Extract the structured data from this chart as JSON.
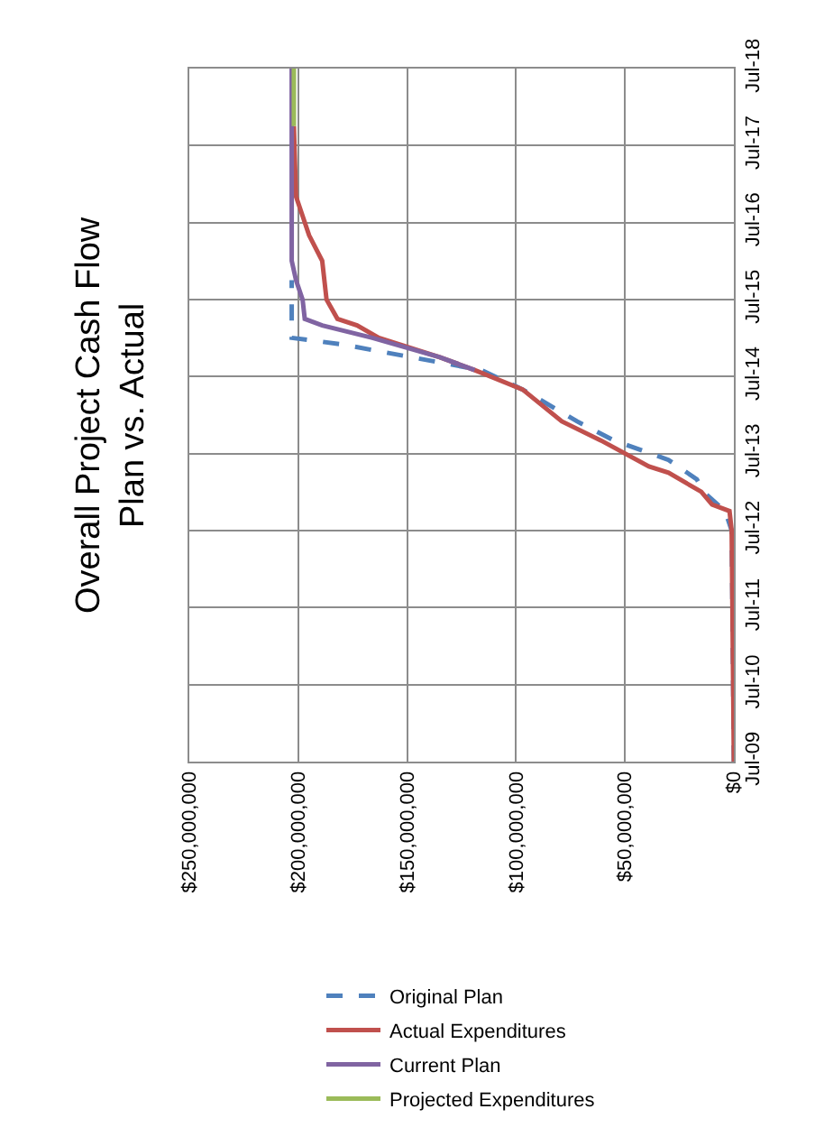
{
  "chart_data": {
    "type": "line",
    "orientation": "horizontal",
    "title": "Overall Project Cash Flow\nPlan vs. Actual",
    "xlim": [
      250000000,
      0
    ],
    "xticks": [
      {
        "value": 0,
        "label": "$0"
      },
      {
        "value": 50000000,
        "label": "$50,000,000"
      },
      {
        "value": 100000000,
        "label": "$100,000,000"
      },
      {
        "value": 150000000,
        "label": "$150,000,000"
      },
      {
        "value": 200000000,
        "label": "$200,000,000"
      },
      {
        "value": 250000000,
        "label": "$250,000,000"
      }
    ],
    "ylim": [
      "2009-07",
      "2018-07"
    ],
    "yticks": [
      {
        "value": "2009-07",
        "label": "Jul-09"
      },
      {
        "value": "2010-07",
        "label": "Jul-10"
      },
      {
        "value": "2011-07",
        "label": "Jul-11"
      },
      {
        "value": "2012-07",
        "label": "Jul-12"
      },
      {
        "value": "2013-07",
        "label": "Jul-13"
      },
      {
        "value": "2014-07",
        "label": "Jul-14"
      },
      {
        "value": "2015-07",
        "label": "Jul-15"
      },
      {
        "value": "2016-07",
        "label": "Jul-16"
      },
      {
        "value": "2017-07",
        "label": "Jul-17"
      },
      {
        "value": "2018-07",
        "label": "Jul-18"
      }
    ],
    "grid": true,
    "legend": "bottom",
    "marker": "none",
    "series": [
      {
        "name": "Original Plan",
        "color": "#4f81bd",
        "line_style": "dashed",
        "x": [
          "2009-07",
          "2012-07",
          "2012-10",
          "2013-01",
          "2013-03",
          "2013-06",
          "2013-09",
          "2013-12",
          "2014-05",
          "2014-08",
          "2014-10",
          "2014-12",
          "2015-01",
          "2015-10"
        ],
        "values": [
          0,
          1000000,
          4000000,
          14000000,
          17000000,
          30000000,
          55000000,
          72000000,
          97000000,
          116000000,
          148000000,
          180000000,
          203000000,
          203000000
        ]
      },
      {
        "name": "Actual Expenditures",
        "color": "#c0504d",
        "line_style": "solid",
        "x": [
          "2009-07",
          "2012-07",
          "2012-10",
          "2012-11",
          "2013-01",
          "2013-04",
          "2013-05",
          "2013-09",
          "2013-12",
          "2014-05",
          "2014-08",
          "2014-10",
          "2015-01",
          "2015-03",
          "2015-04",
          "2015-07",
          "2016-01",
          "2016-05",
          "2016-08",
          "2016-11",
          "2017-10"
        ],
        "values": [
          0,
          1000000,
          2000000,
          10000000,
          15000000,
          30000000,
          39000000,
          61000000,
          79000000,
          97000000,
          119000000,
          135000000,
          163000000,
          173000000,
          182000000,
          187000000,
          189000000,
          195000000,
          198000000,
          201000000,
          202000000
        ]
      },
      {
        "name": "Current Plan",
        "color": "#8064a2",
        "line_style": "solid",
        "x": [
          "2014-08",
          "2014-10",
          "2015-01",
          "2015-03",
          "2015-04",
          "2015-07",
          "2015-10",
          "2016-01",
          "2018-07"
        ],
        "values": [
          119000000,
          135000000,
          166000000,
          189000000,
          197000000,
          198000000,
          201000000,
          203000000,
          203000000
        ]
      },
      {
        "name": "Projected Expenditures",
        "color": "#9bbb59",
        "line_style": "solid",
        "x": [
          "2017-10",
          "2018-07"
        ],
        "values": [
          202000000,
          202000000
        ]
      }
    ]
  }
}
